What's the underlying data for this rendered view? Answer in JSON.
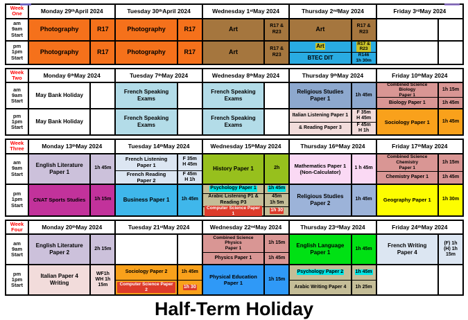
{
  "footer": "Half-Term Holiday",
  "row_labels": {
    "am": "am\n9am\nStart",
    "pm": "pm\n1pm\nStart"
  },
  "colors": {
    "photography_orange": "#F5711B",
    "art_brown": "#A5763E",
    "btec_blue": "#29ABE2",
    "yellow_highlight": "#C9C32A",
    "cyan_highlight": "#00E5E5",
    "red_highlight": "#DD3B2B",
    "week_label_red": "#FF0000"
  },
  "weeks": [
    {
      "label": "Week\nOne",
      "days": [
        {
          "header": [
            "Monday 29",
            "th",
            " April 2024"
          ],
          "am": [
            {
              "s": "Photography",
              "t": "R17",
              "bg": "#F5711B",
              "fs": 9,
              "tfs": 9
            }
          ],
          "pm": [
            {
              "s": "Photography",
              "t": "R17",
              "bg": "#F5711B",
              "fs": 9,
              "tfs": 9
            }
          ]
        },
        {
          "header": [
            "Tuesday 30",
            "th",
            " April 2024"
          ],
          "am": [
            {
              "s": "Photography",
              "t": "R17",
              "bg": "#F5711B",
              "fs": 9,
              "tfs": 9
            }
          ],
          "pm": [
            {
              "s": "Photography",
              "t": "R17",
              "bg": "#F5711B",
              "fs": 9,
              "tfs": 9
            }
          ]
        },
        {
          "header": [
            "Wednesday 1",
            "st",
            " May 2024"
          ],
          "am": [
            {
              "s": "Art",
              "t": "R17 &\nR23",
              "bg": "#A5763E",
              "fs": 9
            }
          ],
          "pm": [
            {
              "s": "Art",
              "t": "R17 &\nR23",
              "bg": "#A5763E",
              "fs": 9
            }
          ]
        },
        {
          "header": [
            "Thursday 2",
            "nd",
            " May 2024"
          ],
          "am": [
            {
              "s": "Art",
              "t": "R17 &\nR23",
              "bg": "#A5763E",
              "fs": 9
            }
          ],
          "pm": [
            {
              "s": "Art",
              "t": "R17 &\nR23",
              "bg": "#29ABE2",
              "shl": "#C9C32A",
              "thl": "#C9C32A",
              "fs": 8,
              "tfs": 6.5
            },
            {
              "s": "BTEC DIT",
              "t": "R146\n1h 30m",
              "bg": "#29ABE2",
              "fs": 8,
              "tfs": 6.5
            }
          ]
        },
        {
          "header": [
            "Friday 3",
            "rd",
            " May 2024"
          ],
          "am": [
            {
              "s": "",
              "t": "",
              "bg": "#FFFFFF"
            }
          ],
          "pm": [
            {
              "s": "",
              "t": "",
              "bg": "#FFFFFF"
            }
          ]
        }
      ]
    },
    {
      "label": "Week\nTwo",
      "days": [
        {
          "header": [
            "Monday 6",
            "th",
            " May 2024"
          ],
          "am": [
            {
              "s": "May Bank Holiday",
              "t": "",
              "bg": "#FFFFFF",
              "fs": 8
            }
          ],
          "pm": [
            {
              "s": "May Bank Holiday",
              "t": "",
              "bg": "#FFFFFF",
              "fs": 8
            }
          ]
        },
        {
          "header": [
            "Tuesday 7",
            "th",
            " May 2024"
          ],
          "am": [
            {
              "s": "French Speaking\nExams",
              "t": "",
              "bg": "#B3DCE8",
              "tcell": "#FFFFFF",
              "fs": 8
            }
          ],
          "pm": [
            {
              "s": "French Speaking\nExams",
              "t": "",
              "bg": "#B3DCE8",
              "tcell": "#FFFFFF",
              "fs": 8
            }
          ]
        },
        {
          "header": [
            "Wednesday 8",
            "th",
            " May 2024"
          ],
          "am": [
            {
              "s": "French Speaking\nExams",
              "t": "",
              "bg": "#B3DCE8",
              "tcell": "#FFFFFF",
              "fs": 8
            }
          ],
          "pm": [
            {
              "s": "French Speaking\nExams",
              "t": "",
              "bg": "#B3DCE8",
              "tcell": "#FFFFFF",
              "fs": 8
            }
          ]
        },
        {
          "header": [
            "Thursday 9",
            "th",
            " May 2024"
          ],
          "am": [
            {
              "s": "Religious Studies\nPaper 1",
              "t": "1h 45m",
              "bg": "#8DA8CE",
              "fs": 8
            }
          ],
          "pm": [
            {
              "s": "Italian Listening Paper 1",
              "t": "F 35m\nH 45m",
              "bg": "#F2DCDB",
              "fs": 7
            },
            {
              "s": "& Reading Paper 3",
              "t": "F 45m\nH 1h",
              "bg": "#F2DCDB",
              "fs": 7
            }
          ]
        },
        {
          "header": [
            "Friday 10",
            "th",
            " May 2024"
          ],
          "am": [
            {
              "s": "Combined Science Biology\nPaper 1",
              "t": "1h 15m",
              "bg": "#D99694",
              "fs": 6.5,
              "f": 1.4
            },
            {
              "s": "Biology Paper 1",
              "t": "1h 45m",
              "bg": "#D99694",
              "fs": 7
            }
          ],
          "pm": [
            {
              "s": "Sociology Paper 1",
              "t": "1h 45m",
              "bg": "#F9A11B",
              "fs": 7.5
            }
          ]
        }
      ]
    },
    {
      "label": "Week\nThree",
      "days": [
        {
          "header": [
            "Monday 13",
            "th",
            " May 2024"
          ],
          "am": [
            {
              "s": "English Literature\nPaper 1",
              "t": "1h 45m",
              "bg": "#CCC1DB",
              "fs": 8
            }
          ],
          "pm": [
            {
              "s": "CNAT Sports Studies",
              "t": "1h 15m",
              "bg": "#C2329B",
              "fs": 7.5
            }
          ]
        },
        {
          "header": [
            "Tuesday 14",
            "th",
            " May 2024"
          ],
          "am": [
            {
              "s": "French Listening\nPaper 1",
              "t": "F 35m\nH 45m",
              "bg": "#DCE6F2",
              "fs": 7.5,
              "f": 1.4
            },
            {
              "s": "French Reading\nPaper 2",
              "t": "F 45m\nH 1h",
              "bg": "#DCE6F2",
              "fs": 7.5
            }
          ],
          "pm": [
            {
              "s": "Business Paper 1",
              "t": "1h 45m",
              "bg": "#3FB7EB",
              "fs": 8
            }
          ]
        },
        {
          "header": [
            "Wednesday 15",
            "th",
            " May 2024"
          ],
          "am": [
            {
              "s": "History Paper 1",
              "t": "2h",
              "bg": "#97C01D",
              "fs": 8
            }
          ],
          "pm": [
            {
              "s": "Psychology Paper 1",
              "t": "1h 45m",
              "bg": "#C4BD97",
              "shl": "#00E5E5",
              "thl": "#00E5E5",
              "fs": 7
            },
            {
              "s": "Arabic Listening P1 &\nReading P3",
              "t": "45m\n1h 5m",
              "bg": "#C4BD97",
              "fs": 7,
              "f": 1.5
            },
            {
              "s": "Computer Science Paper 1",
              "t": "1h 30",
              "bg": "#C4BD97",
              "shl": "#DD3B2B",
              "scol": "#FFFFFF",
              "thl": "#DD3B2B",
              "tcol": "#FFFFFF",
              "fs": 6.5
            }
          ]
        },
        {
          "header": [
            "Thursday 16",
            "th",
            " May 2024"
          ],
          "am": [
            {
              "s": "Mathematics Paper 1\n(Non-Calculator)",
              "t": "1 h 45m",
              "bg": "#FAD9F4",
              "fs": 7.5
            }
          ],
          "pm": [
            {
              "s": "Religious Studies\nPaper 2",
              "t": "1h 45m",
              "bg": "#9CB3D9",
              "fs": 8
            }
          ]
        },
        {
          "header": [
            "Friday 17",
            "th",
            " May 2024"
          ],
          "am": [
            {
              "s": "Combined Science\nChemistry\nPaper 1",
              "t": "1h 15m",
              "bg": "#D99694",
              "fs": 6.5,
              "f": 1.5
            },
            {
              "s": "Chemistry Paper 1",
              "t": "1h 45m",
              "bg": "#D99694",
              "fs": 7
            }
          ],
          "pm": [
            {
              "s": "Geography Paper 1",
              "t": "1h 30m",
              "bg": "#FDFD00",
              "fs": 7.5
            }
          ]
        }
      ]
    },
    {
      "label": "Week\nFour",
      "days": [
        {
          "header": [
            "Monday 20",
            "th",
            " May 2024"
          ],
          "am": [
            {
              "s": "English Literature\nPaper 2",
              "t": "2h 15m",
              "bg": "#CCC1DB",
              "fs": 8
            }
          ],
          "pm": [
            {
              "s": "Italian Paper 4\nWriting",
              "t": "WF1h\nWH 1h\n15m",
              "bg": "#F2DCDB",
              "fs": 8
            }
          ]
        },
        {
          "header": [
            "Tuesday 21",
            "st",
            " May 2024"
          ],
          "am": [
            {
              "s": "",
              "t": "",
              "bg": "#FFFFFF"
            }
          ],
          "pm": [
            {
              "s": "Sociology Paper 2",
              "t": "1h 45m",
              "bg": "#F9A11B",
              "fs": 7
            },
            {
              "s": "Computer Science Paper 2",
              "t": "1h 30",
              "bg": "#F9A11B",
              "shl": "#DD3B2B",
              "scol": "#FFFFFF",
              "thl": "#DD3B2B",
              "tcol": "#FFFFFF",
              "fs": 6.5
            }
          ]
        },
        {
          "header": [
            "Wednesday 22",
            "nd",
            " May 2024"
          ],
          "am": [
            {
              "s": "Combined Science Physics\nPaper 1",
              "t": "1h 15m",
              "bg": "#D99694",
              "fs": 6.5,
              "f": 1.5
            },
            {
              "s": "Physics Paper 1",
              "t": "1h 45m",
              "bg": "#D99694",
              "fs": 7
            }
          ],
          "pm": [
            {
              "s": "Physical Education\nPaper 1",
              "t": "1h 15m",
              "bg": "#2F99F7",
              "fs": 7.5
            }
          ]
        },
        {
          "header": [
            "Thursday 23",
            "rd",
            " May 2024"
          ],
          "am": [
            {
              "s": "English Language\nPaper 1",
              "t": "1h 45m",
              "bg": "#00E114",
              "fs": 8
            }
          ],
          "pm": [
            {
              "s": "Psychology Paper 2",
              "t": "1h 45m",
              "bg": "#C4BD97",
              "shl": "#00E5E5",
              "thl": "#00E5E5",
              "fs": 7
            },
            {
              "s": "Arabic Writing Paper 4",
              "t": "1h 25m",
              "bg": "#C4BD97",
              "fs": 7
            }
          ]
        },
        {
          "header": [
            "Friday 24",
            "th",
            " May 2024"
          ],
          "am": [
            {
              "s": "French Writing\nPaper 4",
              "t": "(F) 1h\n(H) 1h\n15m",
              "bg": "#DCE6F2",
              "fs": 8
            }
          ],
          "pm": [
            {
              "s": "",
              "t": "",
              "bg": "#FFFFFF"
            }
          ]
        }
      ]
    }
  ]
}
